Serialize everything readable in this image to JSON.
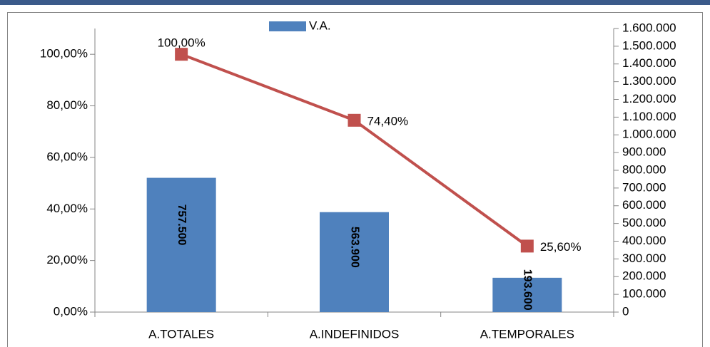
{
  "chart_data": {
    "type": "combo",
    "categories": [
      "A.TOTALES",
      "A.INDEFINIDOS",
      "A.TEMPORALES"
    ],
    "series": [
      {
        "name": "V.A.",
        "type": "bar",
        "axis": "y2",
        "color": "#4f81bd",
        "values": [
          757500,
          563900,
          193600
        ],
        "value_labels": [
          "757.500",
          "563.900",
          "193.600"
        ]
      },
      {
        "type": "line",
        "axis": "y",
        "color": "#c0504d",
        "values": [
          100,
          74.4,
          25.6
        ],
        "value_labels": [
          "100,00%",
          "74,40%",
          "25,60%"
        ]
      }
    ],
    "ylim": [
      0,
      110
    ],
    "yticks": [
      {
        "value": 0,
        "label": "0,00%"
      },
      {
        "value": 20,
        "label": "20,00%"
      },
      {
        "value": 40,
        "label": "40,00%"
      },
      {
        "value": 60,
        "label": "60,00%"
      },
      {
        "value": 80,
        "label": "80,00%"
      },
      {
        "value": 100,
        "label": "100,00%"
      }
    ],
    "y2lim": [
      0,
      1600000
    ],
    "y2ticks": [
      0,
      {
        "value": 100000,
        "label": "100.000"
      },
      {
        "value": 200000,
        "label": "200.000"
      },
      {
        "value": 300000,
        "label": "300.000"
      },
      {
        "value": 400000,
        "label": "400.000"
      },
      {
        "value": 500000,
        "label": "500.000"
      },
      {
        "value": 600000,
        "label": "600.000"
      },
      {
        "value": 700000,
        "label": "700.000"
      },
      {
        "value": 800000,
        "label": "800.000"
      },
      {
        "value": 900000,
        "label": "900.000"
      },
      {
        "value": 1000000,
        "label": "1.000.000"
      },
      {
        "value": 1100000,
        "label": "1.100.000"
      },
      {
        "value": 1200000,
        "label": "1.200.000"
      },
      {
        "value": 1300000,
        "label": "1.300.000"
      },
      {
        "value": 1400000,
        "label": "1.400.000"
      },
      {
        "value": 1500000,
        "label": "1.500.000"
      },
      {
        "value": 1600000,
        "label": "1.600.000"
      }
    ],
    "legend": "top"
  }
}
